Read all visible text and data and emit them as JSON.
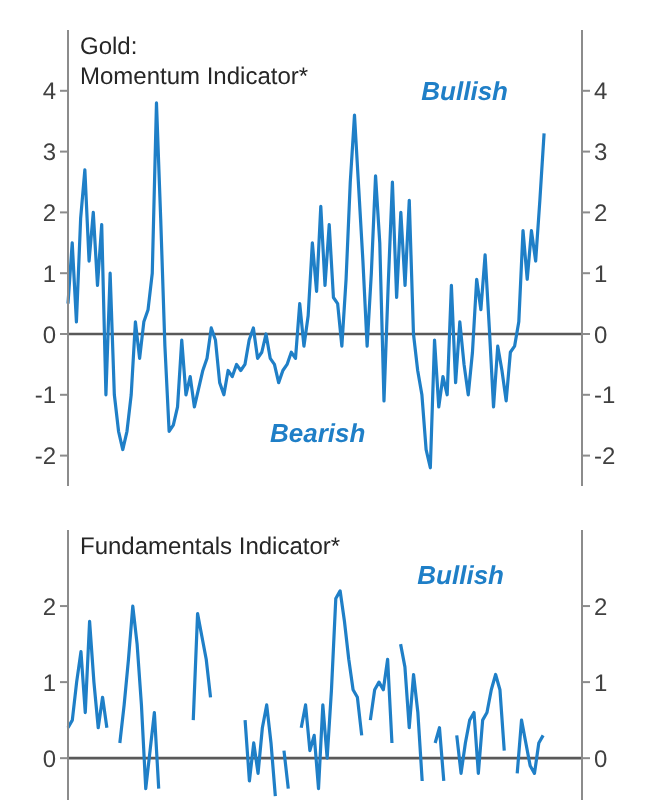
{
  "chart_data": [
    {
      "type": "line",
      "title": "Gold:",
      "subtitle": "Momentum Indicator*",
      "annotations": [
        "Bullish",
        "Bearish"
      ],
      "categories": [
        null,
        null,
        null,
        null,
        null,
        null,
        null,
        null,
        null,
        null,
        null,
        null,
        null,
        null,
        null,
        null,
        null,
        null,
        null,
        null,
        null,
        null,
        null,
        null,
        null,
        null,
        null,
        null,
        null,
        null,
        null,
        null,
        null,
        null,
        null,
        null,
        null,
        null,
        null,
        null,
        null,
        null,
        null,
        null,
        null,
        null,
        null,
        null,
        null,
        null,
        null,
        null,
        null,
        null,
        null,
        null,
        null,
        null,
        null,
        null,
        null,
        null,
        null,
        null,
        null,
        null,
        null,
        null,
        null,
        null,
        null,
        null,
        null,
        null,
        null,
        null,
        null,
        null,
        null,
        null,
        null,
        null,
        null,
        null,
        null,
        null,
        null,
        null,
        null,
        null,
        null,
        null,
        null,
        null,
        null,
        null,
        null,
        null,
        null,
        null,
        null,
        null,
        null,
        null,
        null,
        null,
        null,
        null,
        null,
        null,
        null,
        null,
        null,
        null,
        null,
        null,
        null,
        null,
        null,
        null,
        null,
        null,
        null
      ],
      "series": [
        {
          "color": "#1f7fc7",
          "values": [
            0.5,
            1.5,
            0.2,
            1.9,
            2.7,
            1.2,
            2.0,
            0.8,
            1.8,
            -1.0,
            1.0,
            -1.0,
            -1.6,
            -1.9,
            -1.6,
            -1.0,
            0.2,
            -0.4,
            0.2,
            0.4,
            1.0,
            3.8,
            1.9,
            -0.2,
            -1.6,
            -1.5,
            -1.2,
            -0.1,
            -1.0,
            -0.7,
            -1.2,
            -0.9,
            -0.6,
            -0.4,
            0.1,
            -0.1,
            -0.8,
            -1.0,
            -0.6,
            -0.7,
            -0.5,
            -0.6,
            -0.5,
            -0.1,
            0.1,
            -0.4,
            -0.3,
            0.0,
            -0.4,
            -0.5,
            -0.8,
            -0.6,
            -0.5,
            -0.3,
            -0.4,
            0.5,
            -0.2,
            0.3,
            1.5,
            0.7,
            2.1,
            0.8,
            1.8,
            0.6,
            0.5,
            -0.2,
            0.9,
            2.5,
            3.6,
            2.4,
            1.2,
            -0.2,
            1.0,
            2.6,
            1.5,
            -1.1,
            0.8,
            2.5,
            0.6,
            2.0,
            0.8,
            2.2,
            0.0,
            -0.6,
            -1.0,
            -1.9,
            -2.2,
            -0.1,
            -1.2,
            -0.7,
            -1.0,
            0.8,
            -0.8,
            0.2,
            -0.5,
            -1.0,
            -0.3,
            0.9,
            0.4,
            1.3,
            0.1,
            -1.2,
            -0.2,
            -0.6,
            -1.1,
            -0.3,
            -0.2,
            0.2,
            1.7,
            0.9,
            1.7,
            1.2,
            2.2,
            3.3,
            null,
            null,
            null,
            null,
            null,
            null,
            null,
            null,
            null
          ]
        }
      ],
      "ylim": [
        -2.5,
        5
      ],
      "yticks": [
        -2,
        -1,
        0,
        1,
        2,
        3,
        4
      ],
      "y2lim": [
        -2.5,
        5
      ],
      "y2ticks": [
        -2,
        -1,
        0,
        1,
        2,
        3,
        4
      ],
      "ref_lines": [
        {
          "axis": "y",
          "value": 0,
          "color": "#595959"
        }
      ],
      "grid": false,
      "legend": false,
      "marker": "none",
      "line_style": "solid",
      "tick_labels": "y"
    },
    {
      "type": "line",
      "title": "Fundamentals Indicator*",
      "annotations": [
        "Bullish"
      ],
      "categories": [
        null,
        null,
        null,
        null,
        null,
        null,
        null,
        null,
        null,
        null,
        null,
        null,
        null,
        null,
        null,
        null,
        null,
        null,
        null,
        null,
        null,
        null,
        null,
        null,
        null,
        null,
        null,
        null,
        null,
        null,
        null,
        null,
        null,
        null,
        null,
        null,
        null,
        null,
        null,
        null,
        null,
        null,
        null,
        null,
        null,
        null,
        null,
        null,
        null,
        null,
        null,
        null,
        null,
        null,
        null,
        null,
        null,
        null,
        null,
        null,
        null,
        null,
        null,
        null,
        null,
        null,
        null,
        null,
        null,
        null,
        null,
        null,
        null,
        null,
        null,
        null,
        null,
        null,
        null,
        null,
        null,
        null,
        null,
        null,
        null,
        null,
        null,
        null,
        null,
        null,
        null,
        null,
        null,
        null,
        null,
        null,
        null,
        null,
        null,
        null,
        null,
        null,
        null,
        null,
        null,
        null,
        null,
        null,
        null,
        null,
        null,
        null,
        null,
        null,
        null,
        null,
        null,
        null,
        null,
        null
      ],
      "series": [
        {
          "color": "#1f7fc7",
          "values": [
            0.4,
            0.5,
            1.0,
            1.4,
            0.6,
            1.8,
            1.0,
            0.4,
            0.8,
            0.4,
            null,
            null,
            0.2,
            0.7,
            1.3,
            2.0,
            1.5,
            0.7,
            -0.4,
            0.1,
            0.6,
            -0.4,
            null,
            null,
            null,
            null,
            null,
            null,
            null,
            0.5,
            1.9,
            1.6,
            1.3,
            0.8,
            null,
            null,
            null,
            null,
            null,
            null,
            null,
            0.5,
            -0.3,
            0.2,
            -0.2,
            0.4,
            0.7,
            0.2,
            -0.5,
            null,
            0.1,
            -0.4,
            null,
            null,
            0.4,
            0.7,
            0.1,
            0.3,
            -0.4,
            0.7,
            0.0,
            0.9,
            2.1,
            2.2,
            1.8,
            1.3,
            0.9,
            0.8,
            0.3,
            null,
            0.5,
            0.9,
            1.0,
            0.9,
            1.3,
            0.2,
            null,
            1.5,
            1.2,
            0.4,
            1.1,
            0.6,
            -0.3,
            null,
            null,
            0.2,
            0.4,
            -0.3,
            null,
            null,
            0.3,
            -0.2,
            0.2,
            0.5,
            0.6,
            -0.2,
            0.5,
            0.6,
            0.9,
            1.1,
            0.9,
            0.1,
            null,
            null,
            -0.2,
            0.5,
            0.2,
            -0.1,
            -0.2,
            0.2,
            0.3,
            null,
            null,
            null,
            null,
            null,
            null,
            null,
            null,
            null
          ]
        }
      ],
      "ylim": [
        -0.55,
        3
      ],
      "yticks": [
        0,
        1,
        2
      ],
      "y2lim": [
        -0.55,
        3
      ],
      "y2ticks": [
        0,
        1,
        2
      ],
      "ref_lines": [
        {
          "axis": "y",
          "value": 0,
          "color": "#595959"
        }
      ],
      "grid": false,
      "legend": false,
      "marker": "none",
      "line_style": "solid",
      "tick_labels": "y"
    }
  ]
}
